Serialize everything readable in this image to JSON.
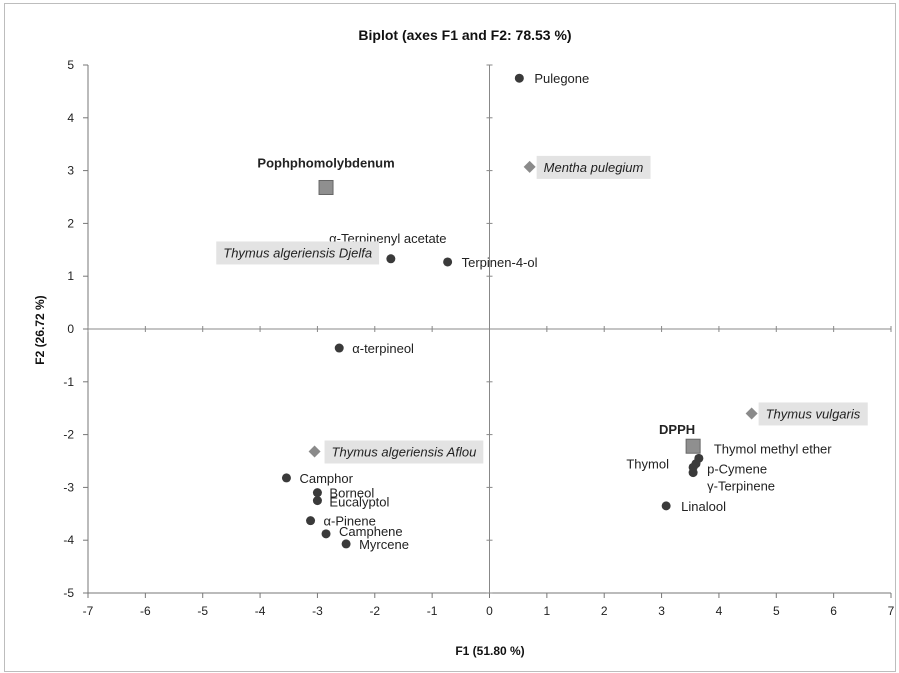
{
  "chart_data": {
    "type": "scatter",
    "title": "Biplot (axes F1 and F2: 78.53 %)",
    "xlabel": "F1 (51.80 %)",
    "ylabel": "F2 (26.72 %)",
    "xlim": [
      -7,
      7
    ],
    "ylim": [
      -5,
      5
    ],
    "xticks": [
      "-7",
      "-6",
      "-5",
      "-4",
      "-3",
      "-2",
      "-1",
      "0",
      "1",
      "2",
      "3",
      "4",
      "5",
      "6",
      "7"
    ],
    "yticks": [
      "-5",
      "-4",
      "-3",
      "-2",
      "-1",
      "0",
      "1",
      "2",
      "3",
      "4",
      "5"
    ],
    "grid": false,
    "series": [
      {
        "marker": "circle",
        "color": "#3a3a3a",
        "points": [
          {
            "label": "Pulegone",
            "x": 0.52,
            "y": 4.75
          },
          {
            "label": "α-Terpinenyl acetate",
            "x": -1.72,
            "y": 1.33
          },
          {
            "label": "Terpinen-4-ol",
            "x": -0.73,
            "y": 1.27
          },
          {
            "label": "α-terpineol",
            "x": -2.62,
            "y": -0.36
          },
          {
            "label": "Camphor",
            "x": -3.54,
            "y": -2.82
          },
          {
            "label": "Borneol",
            "x": -3.0,
            "y": -3.1
          },
          {
            "label": "Eucalyptol",
            "x": -3.0,
            "y": -3.25
          },
          {
            "label": "α-Pinene",
            "x": -3.12,
            "y": -3.63
          },
          {
            "label": "Camphene",
            "x": -2.85,
            "y": -3.88
          },
          {
            "label": "Myrcene",
            "x": -2.5,
            "y": -4.07
          },
          {
            "label": "Thymol methyl ether",
            "x": 3.65,
            "y": -2.45
          },
          {
            "label": "Thymol",
            "x": 3.6,
            "y": -2.55
          },
          {
            "label": "p-Cymene",
            "x": 3.55,
            "y": -2.62
          },
          {
            "label": "γ-Terpinene",
            "x": 3.55,
            "y": -2.72
          },
          {
            "label": "Linalool",
            "x": 3.08,
            "y": -3.35
          }
        ]
      },
      {
        "marker": "diamond",
        "color": "#8a8a8a",
        "points": [
          {
            "label": "Mentha pulegium",
            "x": 0.7,
            "y": 3.07
          },
          {
            "label": "Thymus algeriensis  Djelfa",
            "x": -3.1,
            "y": 1.45
          },
          {
            "label": "Thymus algeriensis Aflou",
            "x": -3.05,
            "y": -2.32
          },
          {
            "label": "Thymus vulgaris",
            "x": 4.57,
            "y": -1.6
          }
        ]
      },
      {
        "marker": "square",
        "color": "#8f8f8f",
        "points": [
          {
            "label": "Pophphomolybdenum",
            "x": -2.85,
            "y": 2.68
          },
          {
            "label": "DPPH",
            "x": 3.55,
            "y": -2.22
          }
        ]
      }
    ]
  }
}
